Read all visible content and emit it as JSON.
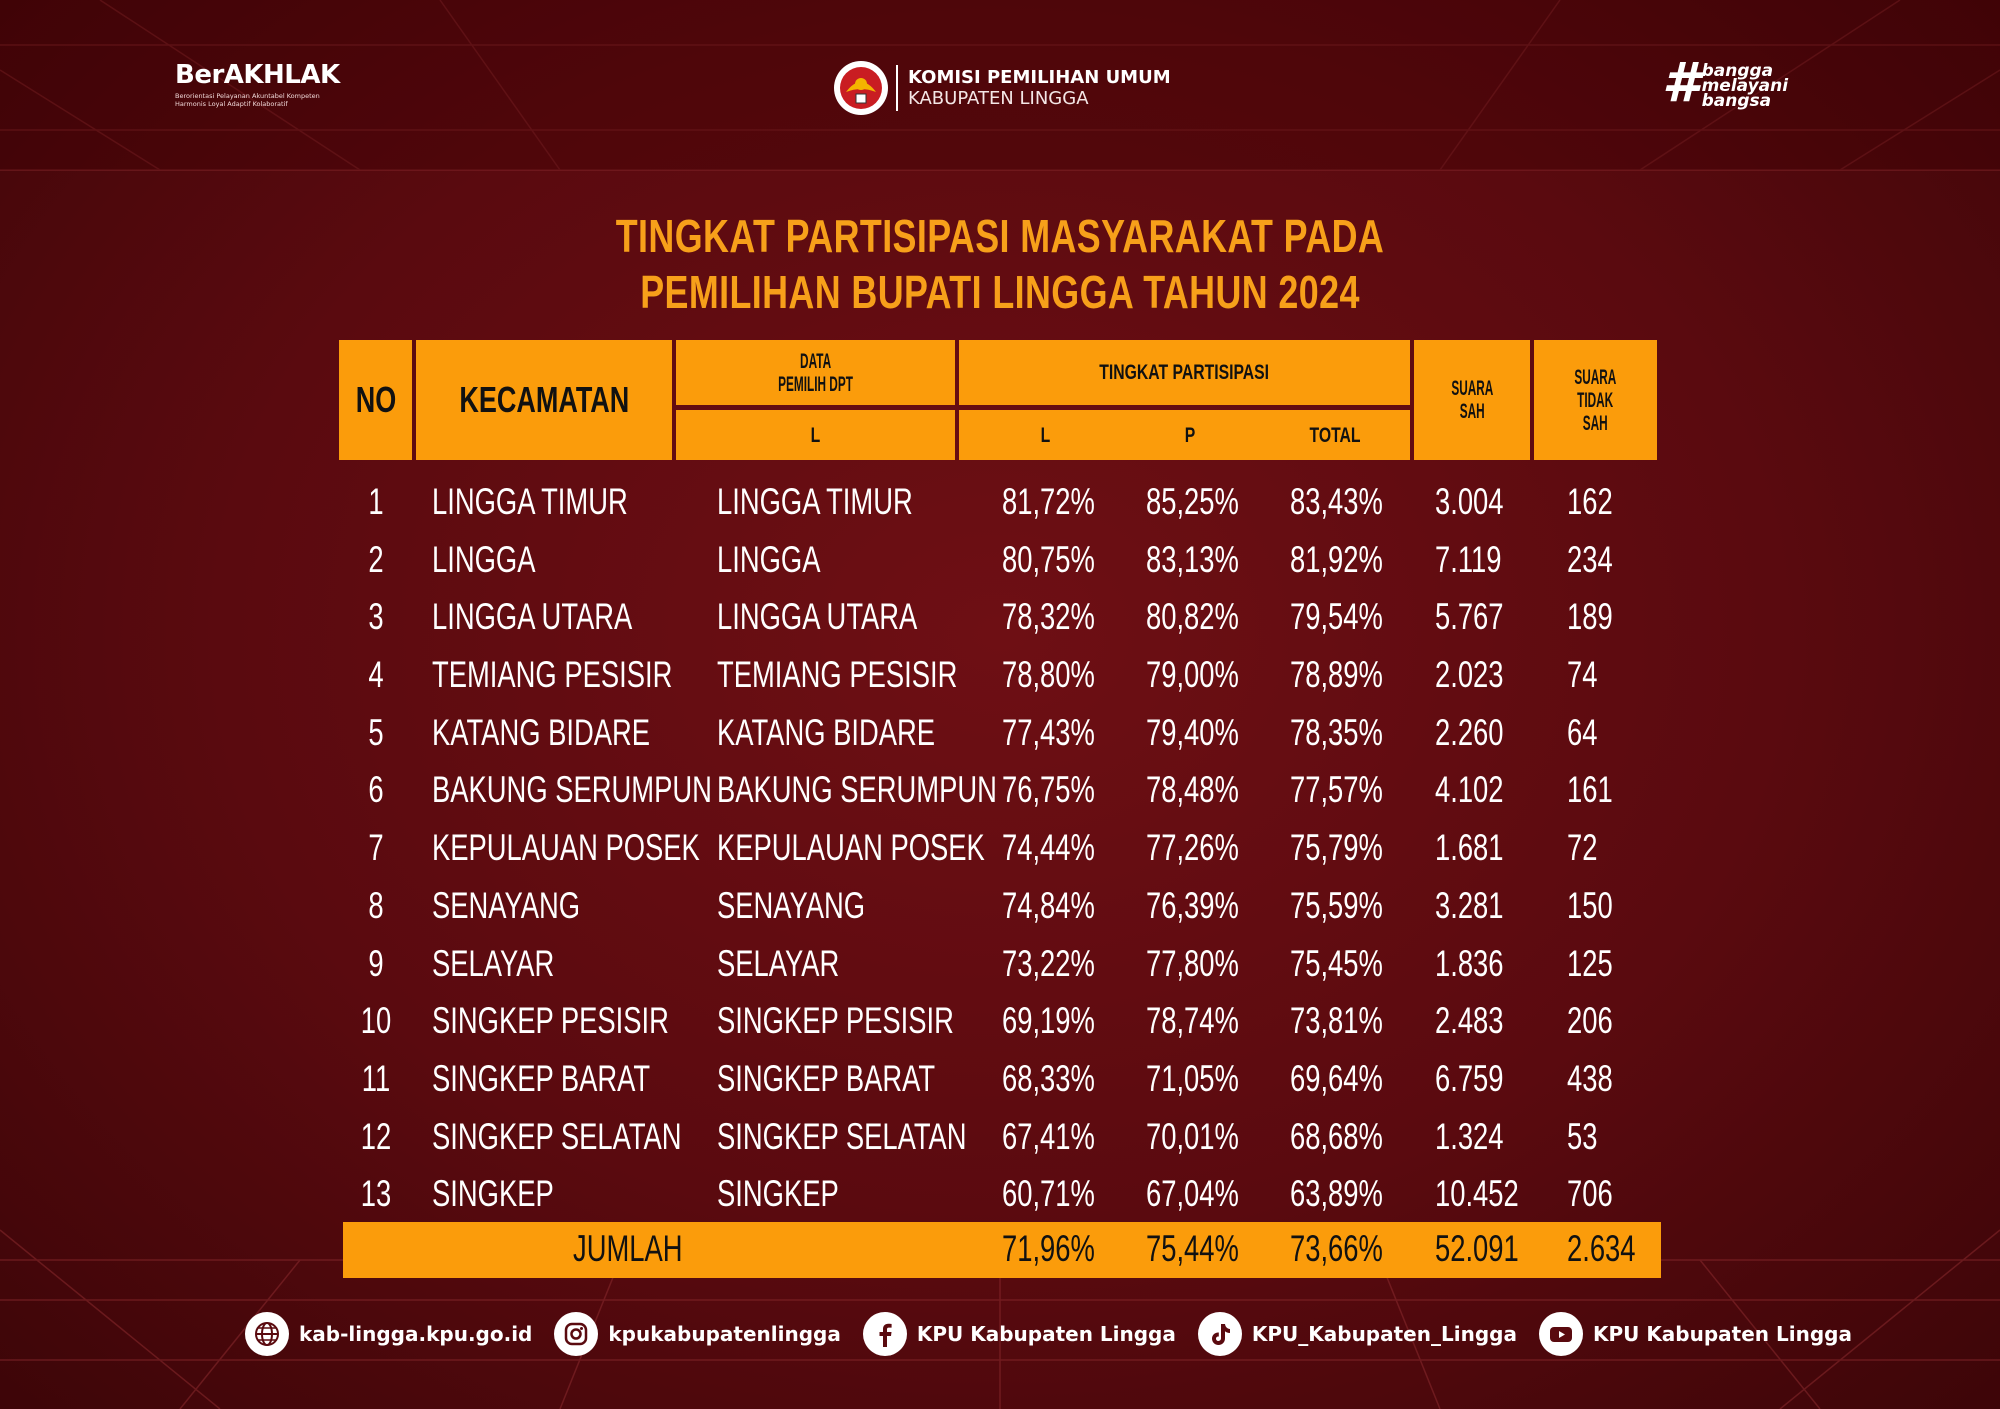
{
  "header": {
    "left_brand": "BerAKHLAK",
    "left_brand_sub": "Berorientasi Pelayanan Akuntabel Kompeten Harmonis Loyal Adaptif Kolaboratif",
    "center_title": "KOMISI PEMILIHAN UMUM",
    "center_subtitle": "KABUPATEN LINGGA",
    "right_hash": "#",
    "right_words": [
      "bangga",
      "melayani",
      "bangsa"
    ]
  },
  "title": {
    "line1": "TINGKAT PARTISIPASI MASYARAKAT PADA",
    "line2": "PEMILIHAN BUPATI LINGGA TAHUN 2024"
  },
  "table": {
    "headers": {
      "no": "NO",
      "kecamatan": "KECAMATAN",
      "dpt_line1": "DATA",
      "dpt_line2": "PEMILIH DPT",
      "dpt_sub": "L",
      "partisipasi": "TINGKAT PARTISIPASI",
      "part_l": "L",
      "part_p": "P",
      "part_total": "TOTAL",
      "sah_line1": "SUARA",
      "sah_line2": "SAH",
      "tsah_line1": "SUARA",
      "tsah_line2": "TIDAK",
      "tsah_line3": "SAH"
    },
    "rows": [
      {
        "no": "1",
        "kecamatan": "LINGGA TIMUR",
        "dpt": "LINGGA TIMUR",
        "l": "81,72%",
        "p": "85,25%",
        "total": "83,43%",
        "sah": "3.004",
        "tidak_sah": "162"
      },
      {
        "no": "2",
        "kecamatan": "LINGGA",
        "dpt": "LINGGA",
        "l": "80,75%",
        "p": "83,13%",
        "total": "81,92%",
        "sah": "7.119",
        "tidak_sah": "234"
      },
      {
        "no": "3",
        "kecamatan": "LINGGA UTARA",
        "dpt": "LINGGA UTARA",
        "l": "78,32%",
        "p": "80,82%",
        "total": "79,54%",
        "sah": "5.767",
        "tidak_sah": "189"
      },
      {
        "no": "4",
        "kecamatan": "TEMIANG PESISIR",
        "dpt": "TEMIANG PESISIR",
        "l": "78,80%",
        "p": "79,00%",
        "total": "78,89%",
        "sah": "2.023",
        "tidak_sah": "74"
      },
      {
        "no": "5",
        "kecamatan": "KATANG BIDARE",
        "dpt": "KATANG BIDARE",
        "l": "77,43%",
        "p": "79,40%",
        "total": "78,35%",
        "sah": "2.260",
        "tidak_sah": "64"
      },
      {
        "no": "6",
        "kecamatan": "BAKUNG SERUMPUN",
        "dpt": "BAKUNG SERUMPUN",
        "l": "76,75%",
        "p": "78,48%",
        "total": "77,57%",
        "sah": "4.102",
        "tidak_sah": "161"
      },
      {
        "no": "7",
        "kecamatan": "KEPULAUAN POSEK",
        "dpt": "KEPULAUAN POSEK",
        "l": "74,44%",
        "p": "77,26%",
        "total": "75,79%",
        "sah": "1.681",
        "tidak_sah": "72"
      },
      {
        "no": "8",
        "kecamatan": "SENAYANG",
        "dpt": "SENAYANG",
        "l": "74,84%",
        "p": "76,39%",
        "total": "75,59%",
        "sah": "3.281",
        "tidak_sah": "150"
      },
      {
        "no": "9",
        "kecamatan": "SELAYAR",
        "dpt": "SELAYAR",
        "l": "73,22%",
        "p": "77,80%",
        "total": "75,45%",
        "sah": "1.836",
        "tidak_sah": "125"
      },
      {
        "no": "10",
        "kecamatan": "SINGKEP PESISIR",
        "dpt": "SINGKEP PESISIR",
        "l": "69,19%",
        "p": "78,74%",
        "total": "73,81%",
        "sah": "2.483",
        "tidak_sah": "206"
      },
      {
        "no": "11",
        "kecamatan": "SINGKEP BARAT",
        "dpt": "SINGKEP BARAT",
        "l": "68,33%",
        "p": "71,05%",
        "total": "69,64%",
        "sah": "6.759",
        "tidak_sah": "438"
      },
      {
        "no": "12",
        "kecamatan": "SINGKEP SELATAN",
        "dpt": "SINGKEP SELATAN",
        "l": "67,41%",
        "p": "70,01%",
        "total": "68,68%",
        "sah": "1.324",
        "tidak_sah": "53"
      },
      {
        "no": "13",
        "kecamatan": "SINGKEP",
        "dpt": "SINGKEP",
        "l": "60,71%",
        "p": "67,04%",
        "total": "63,89%",
        "sah": "10.452",
        "tidak_sah": "706"
      }
    ],
    "total": {
      "label": "JUMLAH",
      "l": "71,96%",
      "p": "75,44%",
      "total": "73,66%",
      "sah": "52.091",
      "tidak_sah": "2.634"
    }
  },
  "footer": {
    "website": "kab-lingga.kpu.go.id",
    "instagram": "kpukabupatenlingga",
    "facebook": "KPU Kabupaten Lingga",
    "tiktok": "KPU_Kabupaten_Lingga",
    "youtube": "KPU Kabupaten Lingga"
  },
  "colors": {
    "background": "#5a0a0f",
    "accent": "#fb9c0b",
    "title": "#f7a01a"
  }
}
